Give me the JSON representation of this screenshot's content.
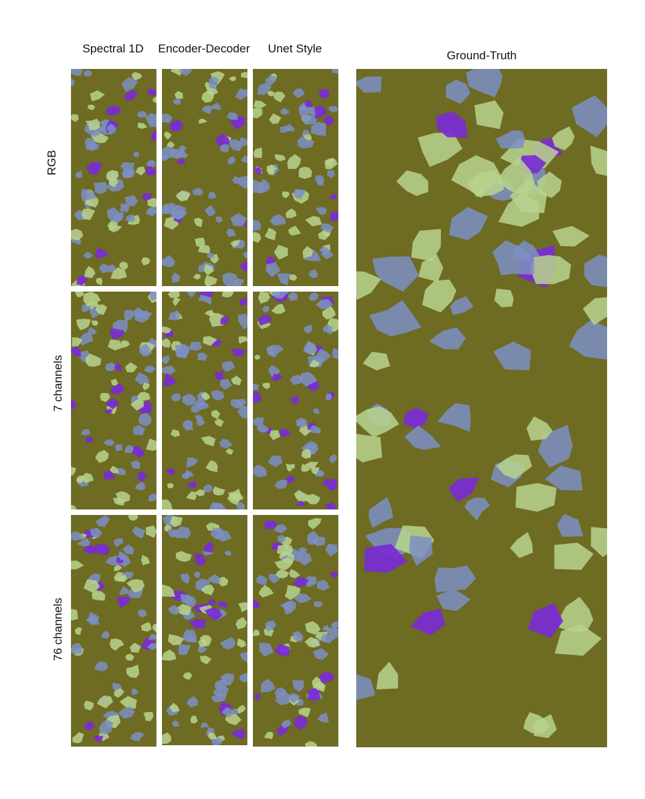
{
  "column_headers": {
    "spectral_1d": "Spectral 1D",
    "encoder_decoder": "Encoder-Decoder",
    "unet_style": "Unet Style",
    "ground_truth": "Ground-Truth"
  },
  "row_labels": {
    "rgb": "RGB",
    "seven_channels": "7 channels",
    "seventy_six_channels": "76 channels"
  },
  "colors": {
    "background": "#6e6b22",
    "class_blue": "#7d8fc4",
    "class_green": "#b9d38e",
    "class_purple": "#7a2bd6"
  }
}
